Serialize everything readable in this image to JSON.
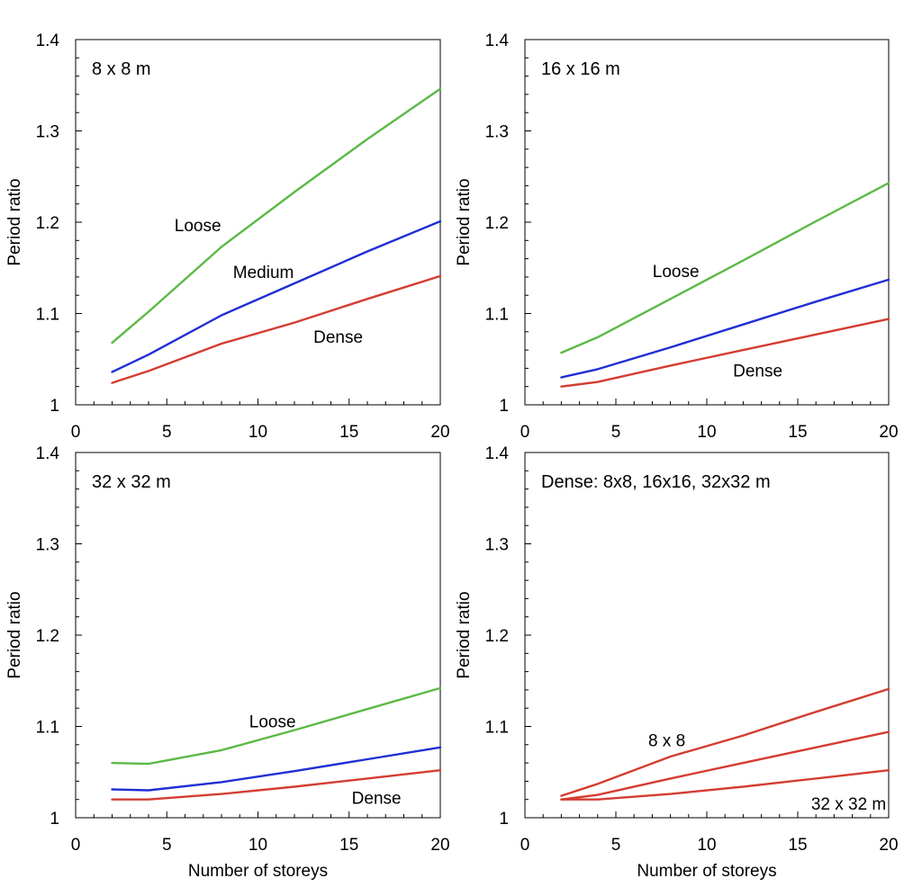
{
  "chart_data": [
    {
      "type": "line",
      "title": "8 x 8 m",
      "xlabel": "",
      "ylabel": "Period ratio",
      "xlim": [
        0,
        20
      ],
      "ylim": [
        1,
        1.4
      ],
      "xticks": [
        "0",
        "5",
        "10",
        "15",
        "20"
      ],
      "yticks": [
        "1",
        "1.1",
        "1.2",
        "1.3",
        "1.4"
      ],
      "grid": false,
      "x": [
        2,
        4,
        8,
        12,
        16,
        20
      ],
      "series": [
        {
          "name": "Loose",
          "color": "#5cb946",
          "values": [
            1.068,
            1.102,
            1.173,
            1.233,
            1.291,
            1.346
          ]
        },
        {
          "name": "Medium",
          "color": "#1f2fd4",
          "values": [
            1.036,
            1.055,
            1.098,
            1.133,
            1.168,
            1.201
          ]
        },
        {
          "name": "Dense",
          "color": "#d43c32",
          "values": [
            1.024,
            1.037,
            1.067,
            1.09,
            1.116,
            1.141
          ]
        }
      ],
      "annotations": [
        {
          "text": "Loose",
          "x": 6.7,
          "y": 1.197
        },
        {
          "text": "Medium",
          "x": 10.3,
          "y": 1.146
        },
        {
          "text": "Dense",
          "x": 14.4,
          "y": 1.075
        }
      ]
    },
    {
      "type": "line",
      "title": "16 x 16 m",
      "xlabel": "",
      "ylabel": "Period ratio",
      "xlim": [
        0,
        20
      ],
      "ylim": [
        1,
        1.4
      ],
      "xticks": [
        "0",
        "5",
        "10",
        "15",
        "20"
      ],
      "yticks": [
        "1",
        "1.1",
        "1.2",
        "1.3",
        "1.4"
      ],
      "grid": false,
      "x": [
        2,
        4,
        8,
        12,
        16,
        20
      ],
      "series": [
        {
          "name": "",
          "color": "#5cb946",
          "values": [
            1.057,
            1.074,
            1.116,
            1.158,
            1.201,
            1.243
          ]
        },
        {
          "name": "",
          "color": "#1f2fd4",
          "values": [
            1.03,
            1.039,
            1.063,
            1.088,
            1.113,
            1.137
          ]
        },
        {
          "name": "",
          "color": "#d43c32",
          "values": [
            1.02,
            1.025,
            1.043,
            1.06,
            1.077,
            1.094
          ]
        }
      ],
      "annotations": [
        {
          "text": "Loose",
          "x": 8.3,
          "y": 1.147
        },
        {
          "text": "Dense",
          "x": 12.8,
          "y": 1.038
        }
      ]
    },
    {
      "type": "line",
      "title": "32 x 32 m",
      "xlabel": "",
      "ylabel": "Period ratio",
      "xlim": [
        0,
        20
      ],
      "ylim": [
        1,
        1.4
      ],
      "xticks": [
        "0",
        "5",
        "10",
        "15",
        "20"
      ],
      "yticks": [
        "1",
        "1.1",
        "1.2",
        "1.3",
        "1.4"
      ],
      "grid": false,
      "x": [
        2,
        4,
        8,
        12,
        16,
        20
      ],
      "series": [
        {
          "name": "",
          "color": "#5cb946",
          "values": [
            1.06,
            1.059,
            1.074,
            1.096,
            1.119,
            1.142
          ]
        },
        {
          "name": "",
          "color": "#1f2fd4",
          "values": [
            1.031,
            1.03,
            1.039,
            1.051,
            1.064,
            1.077
          ]
        },
        {
          "name": "",
          "color": "#d43c32",
          "values": [
            1.02,
            1.02,
            1.026,
            1.034,
            1.043,
            1.052
          ]
        }
      ],
      "annotations": [
        {
          "text": "Loose",
          "x": 10.8,
          "y": 1.106
        },
        {
          "text": "Dense",
          "x": 16.5,
          "y": 1.022
        }
      ]
    },
    {
      "type": "line",
      "title": "Dense: 8x8, 16x16, 32x32 m",
      "xlabel": "Number of storeys",
      "ylabel": "Period ratio",
      "xlim": [
        0,
        20
      ],
      "ylim": [
        1,
        1.4
      ],
      "xticks": [
        "0",
        "5",
        "10",
        "15",
        "20"
      ],
      "yticks": [
        "1",
        "1.1",
        "1.2",
        "1.3",
        "1.4"
      ],
      "grid": false,
      "x": [
        2,
        4,
        8,
        12,
        16,
        20
      ],
      "series": [
        {
          "name": "",
          "color": "#d43c32",
          "values": [
            1.024,
            1.037,
            1.067,
            1.09,
            1.116,
            1.141
          ]
        },
        {
          "name": "",
          "color": "#d43c32",
          "values": [
            1.02,
            1.025,
            1.043,
            1.06,
            1.077,
            1.094
          ]
        },
        {
          "name": "",
          "color": "#d43c32",
          "values": [
            1.02,
            1.02,
            1.026,
            1.034,
            1.043,
            1.052
          ]
        }
      ],
      "annotations": [
        {
          "text": "8 x 8",
          "x": 7.8,
          "y": 1.085
        },
        {
          "text": "32 x 32 m",
          "x": 17.8,
          "y": 1.016
        }
      ]
    }
  ],
  "bottom_xlabel": "Number of storeys"
}
